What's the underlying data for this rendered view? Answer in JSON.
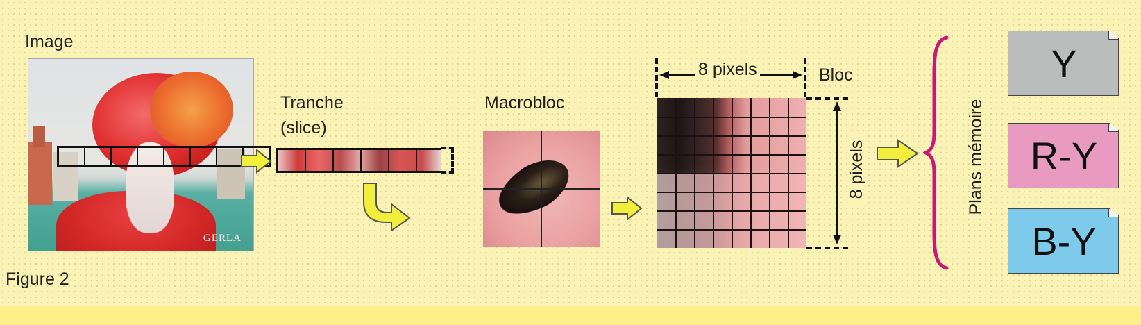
{
  "figure": {
    "caption": "Figure 2",
    "image_label": "Image",
    "image_signature": "GERLA",
    "slice_label_line1": "Tranche",
    "slice_label_line2": "(slice)",
    "macrobloc_label": "Macrobloc",
    "bloc_label": "Bloc",
    "width_label": "8 pixels",
    "height_label": "8 pixels",
    "memory_label": "Plans mémoire",
    "planes": [
      {
        "label": "Y",
        "color": "#bbbcbc"
      },
      {
        "label": "R-Y",
        "color": "#e99ac0"
      },
      {
        "label": "B-Y",
        "color": "#7ecaea"
      }
    ],
    "colors": {
      "background": "#fbf3b6",
      "arrow_fill": "#f2ef3c",
      "brace": "#c8197a"
    }
  }
}
